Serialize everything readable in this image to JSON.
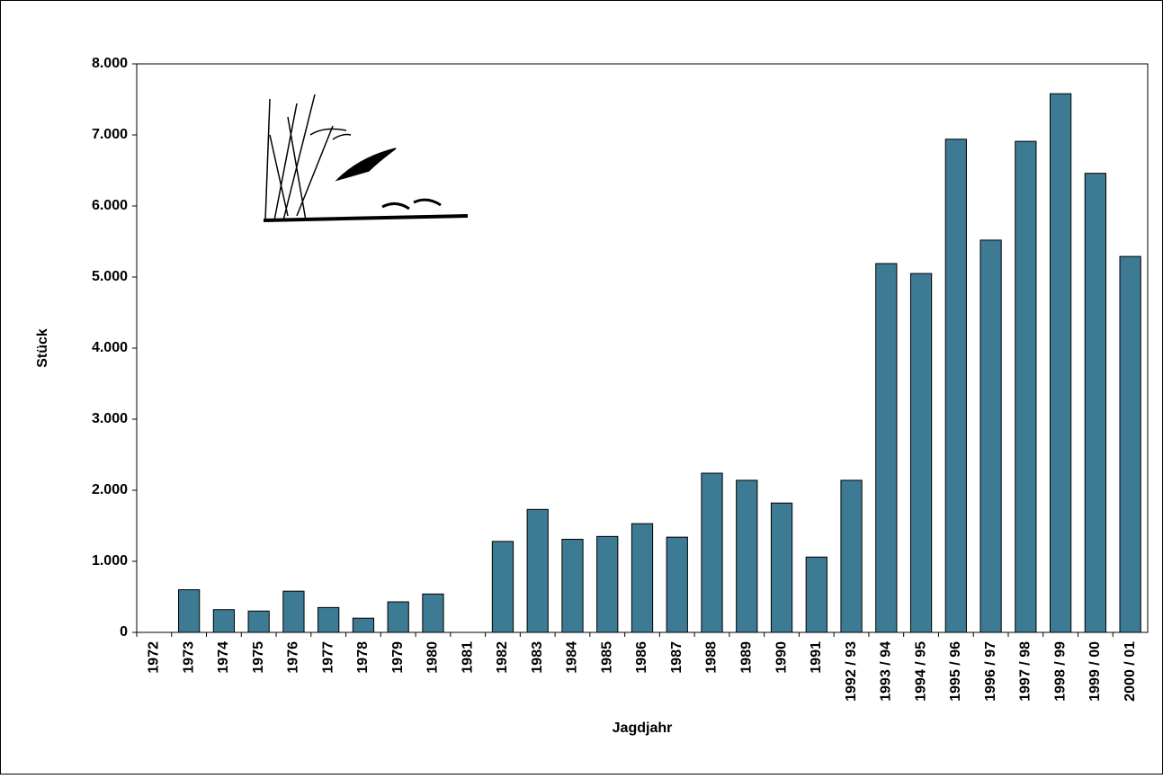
{
  "chart_data": {
    "type": "bar",
    "x_label": "Jagdjahr",
    "y_label": "Stück",
    "categories": [
      "1972",
      "1973",
      "1974",
      "1975",
      "1976",
      "1977",
      "1978",
      "1979",
      "1980",
      "1981",
      "1982",
      "1983",
      "1984",
      "1985",
      "1986",
      "1987",
      "1988",
      "1989",
      "1990",
      "1991",
      "1992 / 93",
      "1993 / 94",
      "1994 / 95",
      "1995 / 96",
      "1996 / 97",
      "1997 / 98",
      "1998 / 99",
      "1999 / 00",
      "2000 / 01"
    ],
    "values": [
      0,
      600,
      320,
      300,
      580,
      350,
      200,
      430,
      540,
      0,
      1280,
      1730,
      1310,
      1350,
      1530,
      1340,
      2240,
      2140,
      1820,
      1060,
      2140,
      5190,
      5050,
      6940,
      5520,
      6910,
      7580,
      6460,
      5290
    ],
    "color": "#3d7a93",
    "ylim": [
      0,
      8000
    ],
    "yticks": [
      0,
      {
        "value": 1000,
        "label": "1.000"
      },
      {
        "value": 2000,
        "label": "2.000"
      },
      {
        "value": 3000,
        "label": "3.000"
      },
      {
        "value": 4000,
        "label": "4.000"
      },
      {
        "value": 5000,
        "label": "5.000"
      },
      {
        "value": 6000,
        "label": "6.000"
      },
      {
        "value": 7000,
        "label": "7.000"
      },
      {
        "value": 8000,
        "label": "8.000"
      }
    ],
    "grid": false
  }
}
